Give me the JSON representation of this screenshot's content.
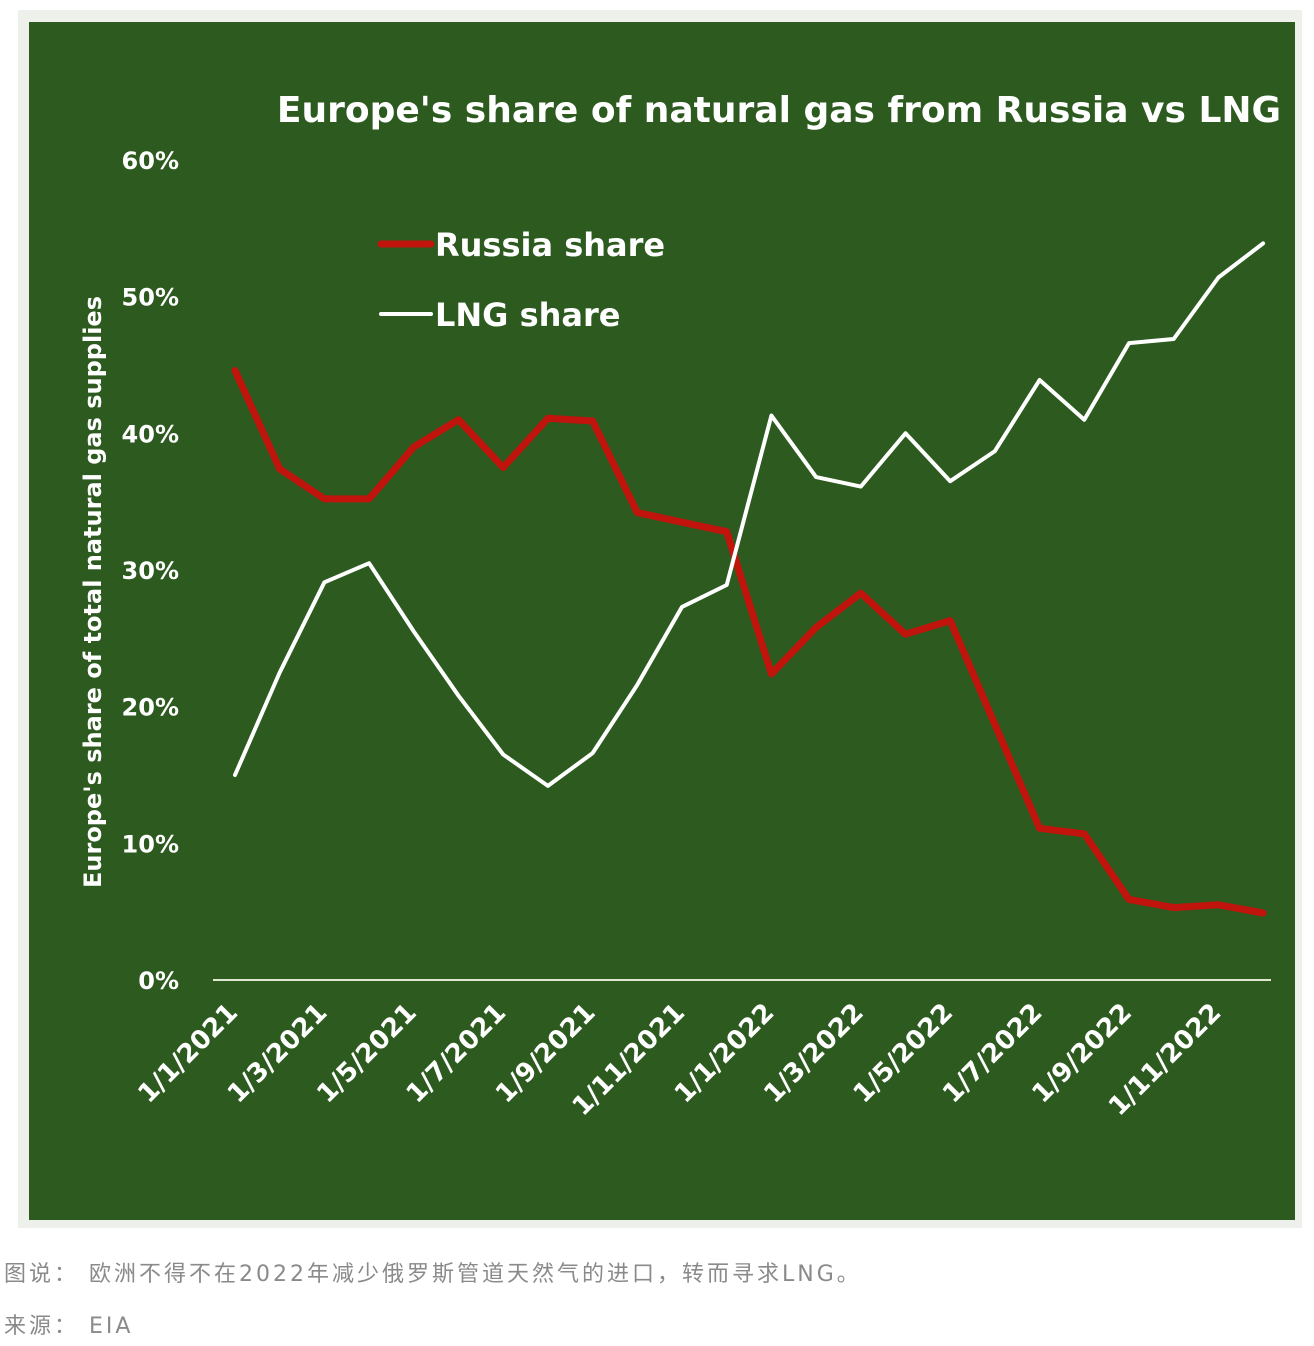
{
  "chart_data": {
    "type": "line",
    "title": "Europe's share of natural gas from Russia vs LNG",
    "ylabel": "Europe's share of total natural gas supplies",
    "xlabel": "",
    "ylim": [
      0,
      60
    ],
    "yticks": [
      "0%",
      "10%",
      "20%",
      "30%",
      "40%",
      "50%",
      "60%"
    ],
    "xticks": [
      "1/1/2021",
      "1/3/2021",
      "1/5/2021",
      "1/7/2021",
      "1/9/2021",
      "1/11/2021",
      "1/1/2022",
      "1/3/2022",
      "1/5/2022",
      "1/7/2022",
      "1/9/2022",
      "1/11/2022"
    ],
    "x": [
      "2021-01",
      "2021-02",
      "2021-03",
      "2021-04",
      "2021-05",
      "2021-06",
      "2021-07",
      "2021-08",
      "2021-09",
      "2021-10",
      "2021-11",
      "2021-12",
      "2022-01",
      "2022-02",
      "2022-03",
      "2022-04",
      "2022-05",
      "2022-06",
      "2022-07",
      "2022-08",
      "2022-09",
      "2022-10",
      "2022-11",
      "2022-12"
    ],
    "legend_position": "top-left",
    "grid": false,
    "series": [
      {
        "name": "Russia share",
        "color": "#c0140c",
        "values": [
          44.6,
          37.4,
          35.2,
          35.2,
          39.0,
          41.0,
          37.5,
          41.1,
          40.9,
          34.2,
          33.5,
          32.8,
          22.4,
          25.8,
          28.3,
          25.3,
          26.3,
          18.7,
          11.1,
          10.7,
          5.9,
          5.3,
          5.5,
          4.9
        ]
      },
      {
        "name": "LNG share",
        "color": "#ffffff",
        "values": [
          15.0,
          22.5,
          29.1,
          30.5,
          25.5,
          20.8,
          16.5,
          14.2,
          16.6,
          21.6,
          27.3,
          28.9,
          41.3,
          36.8,
          36.1,
          40.0,
          36.5,
          38.7,
          43.9,
          41.0,
          46.6,
          46.9,
          51.4,
          53.9
        ]
      }
    ]
  },
  "colors": {
    "plot_background": "#2c5a1f",
    "frame": "#eef0ec",
    "baseline": "#dfe8d2"
  },
  "caption": "图说： 欧洲不得不在2022年减少俄罗斯管道天然气的进口，转而寻求LNG。",
  "source": "来源： EIA"
}
